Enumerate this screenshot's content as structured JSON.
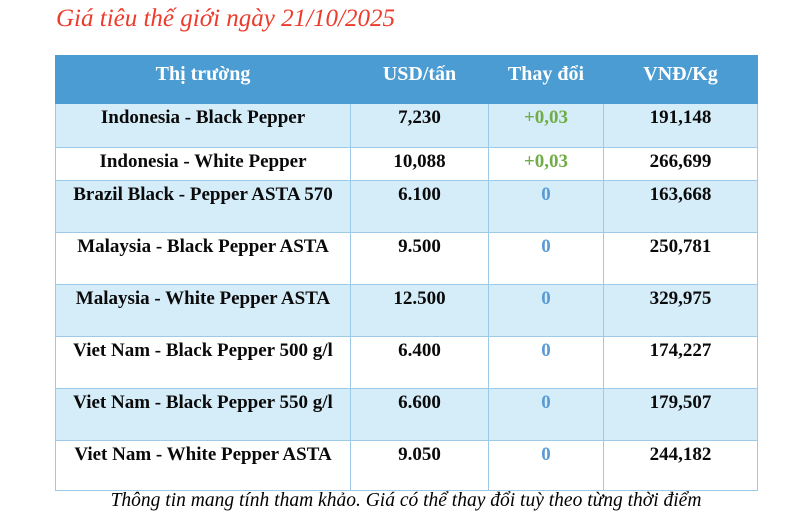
{
  "title": "Giá tiêu thế giới ngày 21/10/2025",
  "footer": "Thông tin mang tính tham khảo. Giá có thể thay đổi tuỳ theo từng thời điểm",
  "colors": {
    "header_bg": "#4a9cd3",
    "row_alt_bg": "#d5ecf9",
    "border": "#9ccae8",
    "title_red": "#ed3b2b",
    "positive_green": "#70ad47",
    "neutral_blue": "#5b9bd5",
    "header_text": "#ffffff",
    "text": "#0a0a0a"
  },
  "chart_data": {
    "type": "table",
    "title": "Giá tiêu thế giới ngày 21/10/2025",
    "columns": [
      "Thị trường",
      "USD/tấn",
      "Thay đổi",
      "VNĐ/Kg"
    ],
    "rows": [
      {
        "market": "Indonesia - Black Pepper",
        "usd": "7,230",
        "change": "+0,03",
        "change_type": "positive",
        "vnd": "191,148"
      },
      {
        "market": "Indonesia - White Pepper",
        "usd": "10,088",
        "change": "+0,03",
        "change_type": "positive",
        "vnd": "266,699"
      },
      {
        "market": "Brazil Black - Pepper ASTA 570",
        "usd": "6.100",
        "change": "0",
        "change_type": "neutral",
        "vnd": "163,668"
      },
      {
        "market": "Malaysia - Black Pepper ASTA",
        "usd": "9.500",
        "change": "0",
        "change_type": "neutral",
        "vnd": "250,781"
      },
      {
        "market": "Malaysia - White Pepper ASTA",
        "usd": "12.500",
        "change": "0",
        "change_type": "neutral",
        "vnd": "329,975"
      },
      {
        "market": "Viet Nam - Black Pepper 500 g/l",
        "usd": "6.400",
        "change": "0",
        "change_type": "neutral",
        "vnd": "174,227"
      },
      {
        "market": "Viet Nam - Black Pepper 550 g/l",
        "usd": "6.600",
        "change": "0",
        "change_type": "neutral",
        "vnd": "179,507"
      },
      {
        "market": "Viet Nam - White Pepper ASTA",
        "usd": "9.050",
        "change": "0",
        "change_type": "neutral",
        "vnd": "244,182"
      }
    ]
  }
}
